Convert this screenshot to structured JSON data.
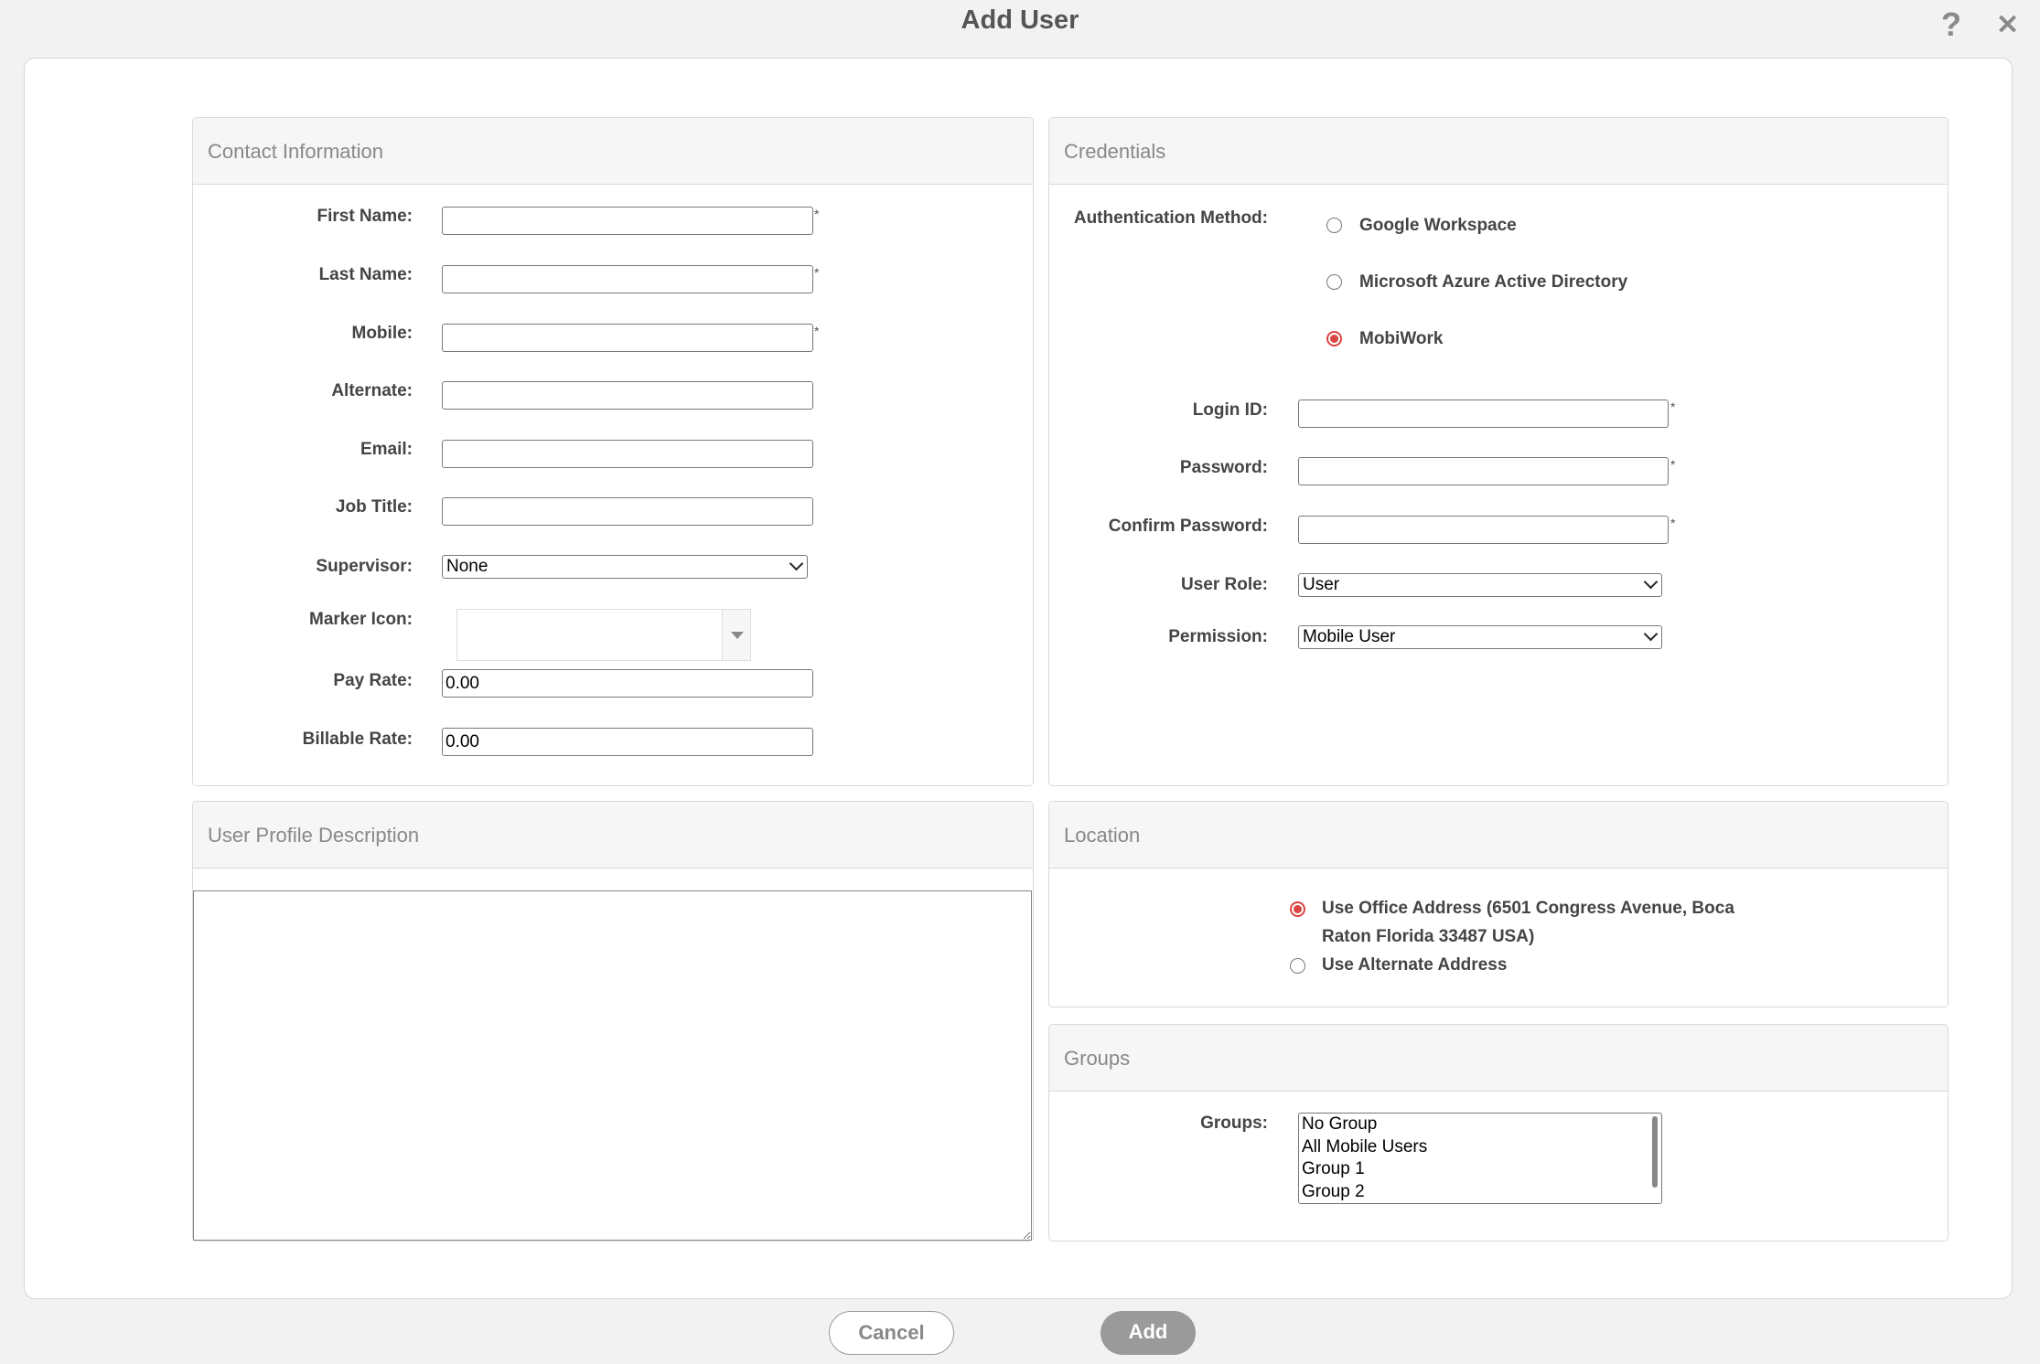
{
  "dialog": {
    "title": "Add User",
    "help_icon": "?",
    "close_icon": "✕"
  },
  "contact": {
    "header": "Contact Information",
    "first_name": {
      "label": "First Name:",
      "value": "",
      "required": "*"
    },
    "last_name": {
      "label": "Last Name:",
      "value": "",
      "required": "*"
    },
    "mobile": {
      "label": "Mobile:",
      "value": "",
      "required": "*"
    },
    "alternate": {
      "label": "Alternate:",
      "value": ""
    },
    "email": {
      "label": "Email:",
      "value": ""
    },
    "job_title": {
      "label": "Job Title:",
      "value": ""
    },
    "supervisor": {
      "label": "Supervisor:",
      "value": "None"
    },
    "marker_icon": {
      "label": "Marker Icon:",
      "value": ""
    },
    "pay_rate": {
      "label": "Pay Rate:",
      "value": "0.00"
    },
    "billable_rate": {
      "label": "Billable Rate:",
      "value": "0.00"
    }
  },
  "credentials": {
    "header": "Credentials",
    "auth_label": "Authentication Method:",
    "auth_options": [
      {
        "label": "Google Workspace",
        "selected": false
      },
      {
        "label": "Microsoft Azure Active Directory",
        "selected": false
      },
      {
        "label": "MobiWork",
        "selected": true
      }
    ],
    "login_id": {
      "label": "Login ID:",
      "value": "",
      "required": "*"
    },
    "password": {
      "label": "Password:",
      "value": "",
      "required": "*"
    },
    "confirm_password": {
      "label": "Confirm Password:",
      "value": "",
      "required": "*"
    },
    "user_role": {
      "label": "User Role:",
      "value": "User"
    },
    "permission": {
      "label": "Permission:",
      "value": "Mobile User"
    }
  },
  "profile": {
    "header": "User Profile Description",
    "value": ""
  },
  "location": {
    "header": "Location",
    "options": [
      {
        "label": "Use Office Address (6501 Congress Avenue, Boca",
        "label_line2": "Raton Florida 33487  USA)",
        "selected": true
      },
      {
        "label": "Use Alternate Address",
        "selected": false
      }
    ]
  },
  "groups": {
    "header": "Groups",
    "label": "Groups:",
    "items": [
      "No Group",
      "All Mobile Users",
      "Group 1",
      "Group 2"
    ]
  },
  "footer": {
    "cancel": "Cancel",
    "add": "Add"
  },
  "colors": {
    "accent_radio": "#dd4444",
    "add_button": "#9a9a9a"
  }
}
